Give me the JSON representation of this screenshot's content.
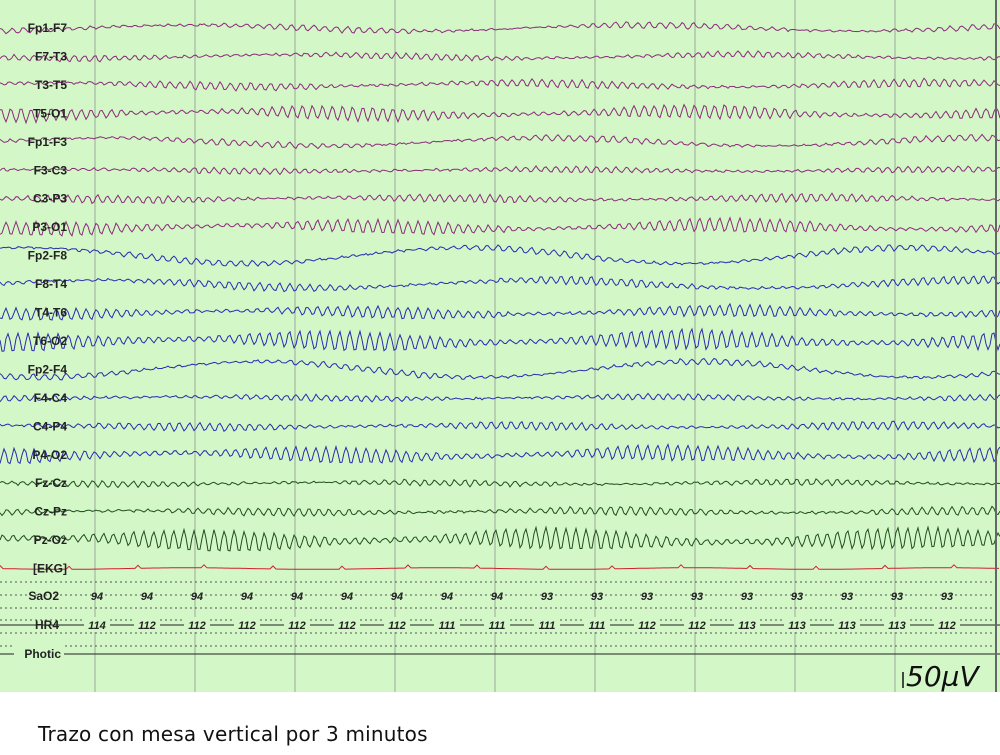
{
  "caption": "Trazo con mesa vertical por 3 minutos",
  "chart_data": {
    "type": "line",
    "background": "#d4f7c8",
    "channels": [
      {
        "name": "Fp1-F7",
        "color": "#8b2a7a",
        "amp": 3,
        "freq": 9,
        "slow": 3
      },
      {
        "name": "F7-T3",
        "color": "#8b2a7a",
        "amp": 3,
        "freq": 10,
        "slow": 2
      },
      {
        "name": "T3-T5",
        "color": "#8b2a7a",
        "amp": 4,
        "freq": 10,
        "slow": 2
      },
      {
        "name": "T5-O1",
        "color": "#8b2a7a",
        "amp": 7,
        "freq": 10,
        "slow": 2
      },
      {
        "name": "Fp1-F3",
        "color": "#8b2a7a",
        "amp": 3,
        "freq": 9,
        "slow": 4
      },
      {
        "name": "F3-C3",
        "color": "#8b2a7a",
        "amp": 3,
        "freq": 10,
        "slow": 1
      },
      {
        "name": "C3-P3",
        "color": "#8b2a7a",
        "amp": 4,
        "freq": 10,
        "slow": 1
      },
      {
        "name": "P3-O1",
        "color": "#8b2a7a",
        "amp": 7,
        "freq": 10,
        "slow": 2
      },
      {
        "name": "Fp2-F8",
        "color": "#2a2ab0",
        "amp": 3,
        "freq": 9,
        "slow": 8
      },
      {
        "name": "F8-T4",
        "color": "#2a2ab0",
        "amp": 4,
        "freq": 10,
        "slow": 4
      },
      {
        "name": "T4-T6",
        "color": "#2a2ab0",
        "amp": 6,
        "freq": 10,
        "slow": 2
      },
      {
        "name": "T6-O2",
        "color": "#2a2ab0",
        "amp": 10,
        "freq": 10,
        "slow": 2
      },
      {
        "name": "Fp2-F4",
        "color": "#2a2ab0",
        "amp": 3,
        "freq": 9,
        "slow": 8
      },
      {
        "name": "F4-C4",
        "color": "#2a2ab0",
        "amp": 3,
        "freq": 10,
        "slow": 1
      },
      {
        "name": "C4-P4",
        "color": "#2a2ab0",
        "amp": 4,
        "freq": 10,
        "slow": 1
      },
      {
        "name": "P4-O2",
        "color": "#2a2ab0",
        "amp": 8,
        "freq": 10,
        "slow": 2
      },
      {
        "name": "Fz-Cz",
        "color": "#1e4d1e",
        "amp": 3,
        "freq": 10,
        "slow": 1
      },
      {
        "name": "Cz-Pz",
        "color": "#1e4d1e",
        "amp": 4,
        "freq": 10,
        "slow": 1
      },
      {
        "name": "Pz-Oz",
        "color": "#1e4d1e",
        "amp": 11,
        "freq": 10,
        "slow": 2
      },
      {
        "name": "[EKG]",
        "color": "#d21e2d",
        "amp": 1,
        "freq": 1,
        "slow": 0
      }
    ],
    "sao2_label": "SaO2",
    "sao2_values": [
      "94",
      "94",
      "94",
      "94",
      "94",
      "94",
      "94",
      "94",
      "94",
      "93",
      "93",
      "93",
      "93",
      "93",
      "93",
      "93",
      "93",
      "93"
    ],
    "hr_label": "HR4",
    "hr_values": [
      "114",
      "112",
      "112",
      "112",
      "112",
      "112",
      "112",
      "111",
      "111",
      "111",
      "111",
      "112",
      "112",
      "113",
      "113",
      "113",
      "113",
      "112"
    ],
    "photic_label": "Photic",
    "scale_label": "50µV"
  }
}
